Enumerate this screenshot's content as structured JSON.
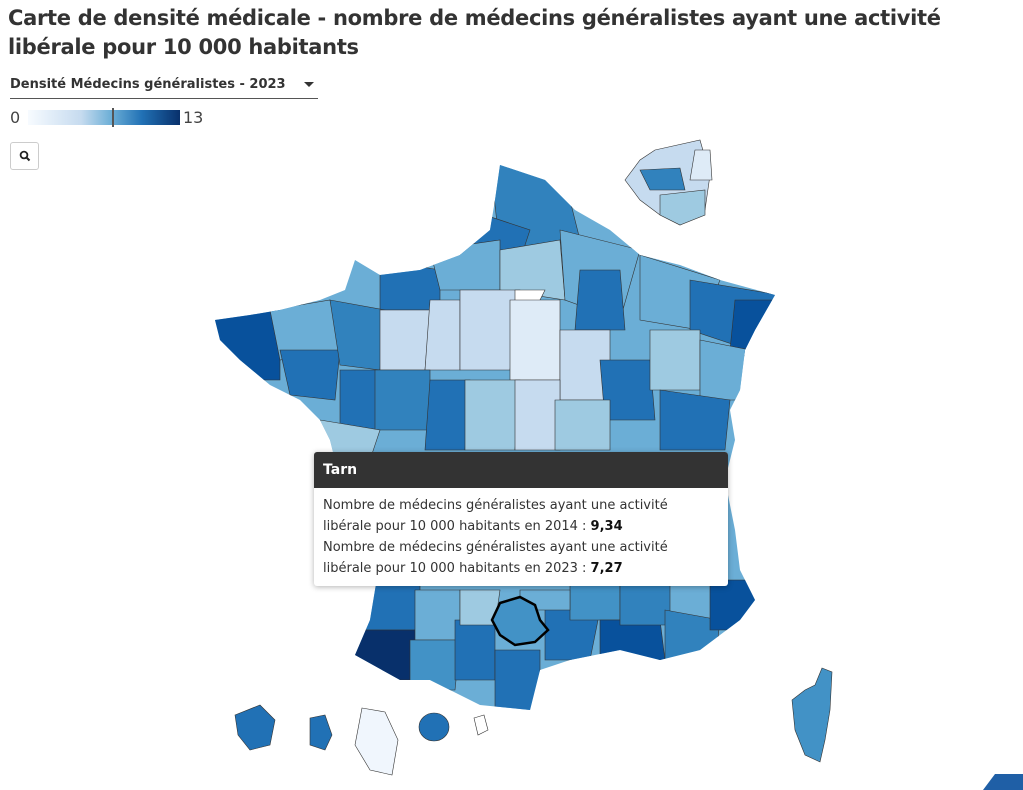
{
  "title": "Carte de densité médicale - nombre de médecins généralistes ayant une activité libérale pour 10 000 habitants",
  "selector": {
    "selected": "Densité Médecins généralistes - 2023"
  },
  "legend": {
    "min": "0",
    "max": "13",
    "marker_value": 7.27
  },
  "zoom_button": {
    "icon": "search-icon"
  },
  "tooltip": {
    "department": "Tarn",
    "line1_text": "Nombre de médecins généralistes ayant une activité libérale pour 10 000 habitants en 2014 : ",
    "line1_value": "9,34",
    "line2_text": "Nombre de médecins généralistes ayant une activité libérale pour 10 000 habitants en 2023 : ",
    "line2_value": "7,27"
  },
  "colors": {
    "light": "#f7fbff",
    "mid": "#6baed6",
    "dark": "#08306b",
    "highlight": "#000000"
  }
}
